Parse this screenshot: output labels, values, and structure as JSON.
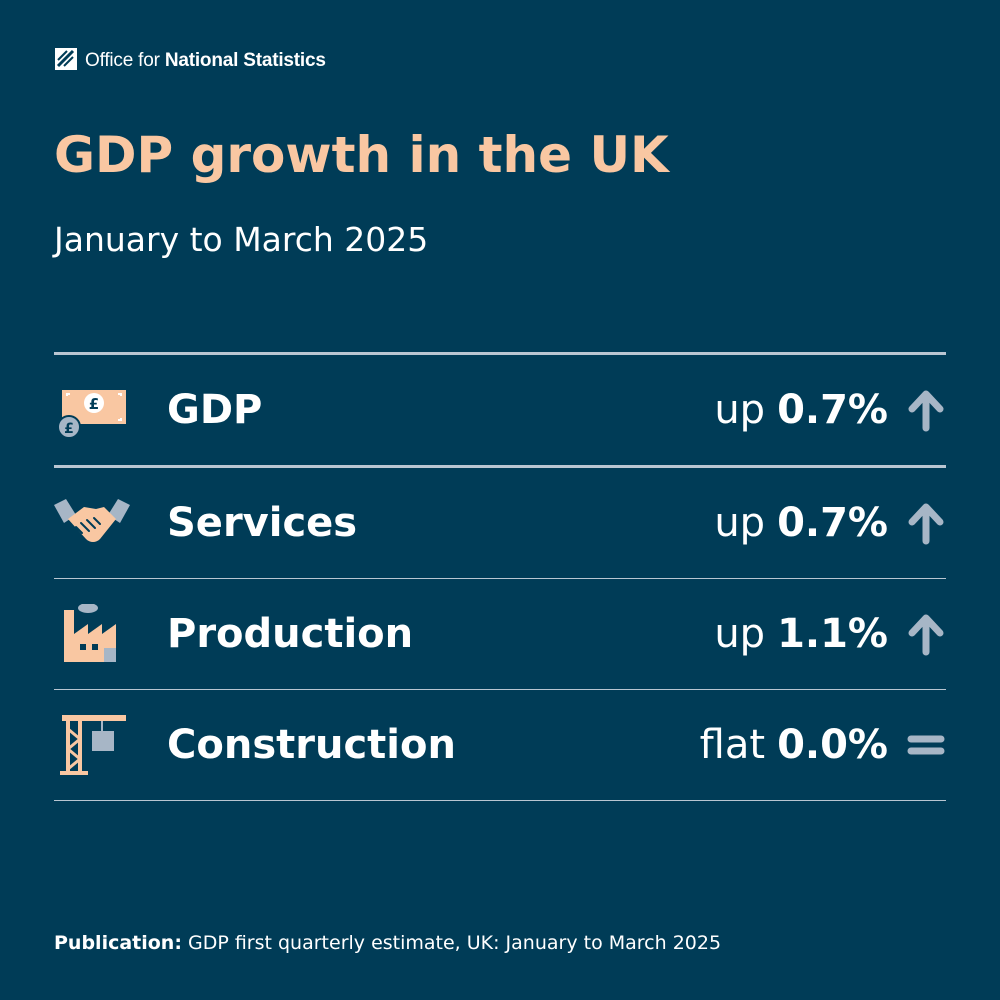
{
  "header": {
    "logo_prefix": "Office for ",
    "logo_bold": "National Statistics",
    "title": "GDP growth in the UK",
    "subtitle": "January to March 2025"
  },
  "rows": [
    {
      "label": "GDP",
      "direction": "up",
      "value": "0.7%",
      "icon": "money-icon",
      "trend": "up-arrow-icon"
    },
    {
      "label": "Services",
      "direction": "up",
      "value": "0.7%",
      "icon": "handshake-icon",
      "trend": "up-arrow-icon"
    },
    {
      "label": "Production",
      "direction": "up",
      "value": "1.1%",
      "icon": "factory-icon",
      "trend": "up-arrow-icon"
    },
    {
      "label": "Construction",
      "direction": "flat",
      "value": "0.0%",
      "icon": "crane-icon",
      "trend": "equals-icon"
    }
  ],
  "footer": {
    "label": "Publication:",
    "text": " GDP first quarterly estimate, UK: January to March 2025"
  },
  "colors": {
    "background": "#003c57",
    "accent": "#f9c7a2",
    "icon_grey": "#a7b6c6",
    "rule": "#b9c6d2"
  }
}
